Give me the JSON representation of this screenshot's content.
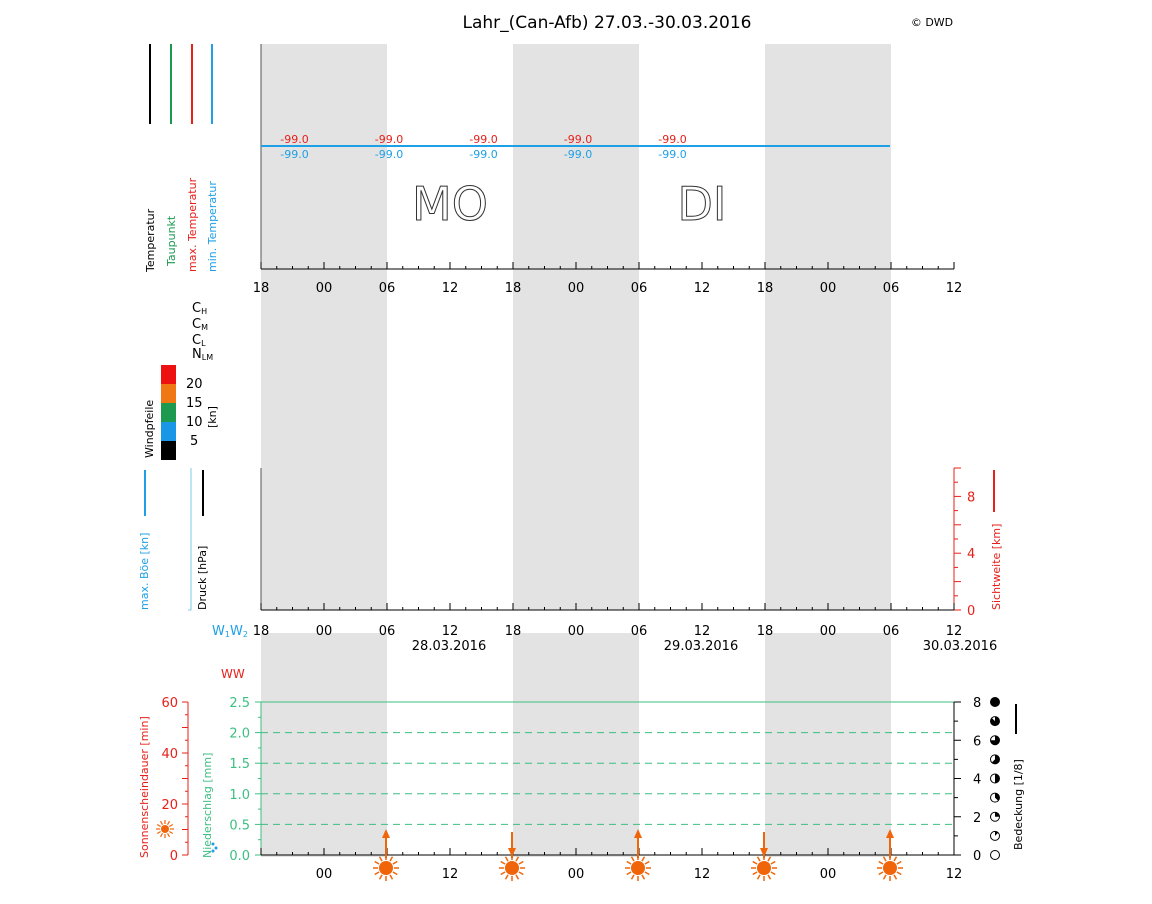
{
  "title": "Lahr_(Can-Afb) 27.03.-30.03.2016",
  "copyright": "© DWD",
  "colors": {
    "temperature": "#000000",
    "dewpoint": "#1a9a50",
    "max_temp": "#e8201a",
    "min_temp": "#1ea0e6",
    "night_band": "#e3e3e3",
    "precip": "#3cbf82",
    "sunshine": "#e8201a",
    "sun_icon": "#f0650a",
    "wind_20": "#ee1111",
    "wind_15": "#f07814",
    "wind_10": "#1e9a50",
    "wind_5": "#1a96e6",
    "wind_0": "#000000"
  },
  "legend": {
    "temperature": "Temperatur",
    "dewpoint": "Taupunkt",
    "max_temp": "max. Temperatur",
    "min_temp": "min. Temperatur",
    "cloud_ch": "CH",
    "cloud_cm": "CM",
    "cloud_cl": "CL",
    "cloud_nlm": "NLM",
    "wind_title": "Windpfeile",
    "wind_unit": "[kn]",
    "wind_levels": [
      "20",
      "15",
      "10",
      "5"
    ],
    "gust": "max. Böe [kn]",
    "pressure": "Druck [hPa]",
    "visibility": "Sichtweite [km]",
    "weather_codes": "W1W2",
    "ww": "WW",
    "sunshine": "Sonnenscheindauer [min]",
    "precip": "Niederschlag [mm]",
    "cloud_cover": "Bedeckung [1/8]"
  },
  "day_labels": [
    "MO",
    "DI"
  ],
  "dates": [
    "28.03.2016",
    "29.03.2016",
    "30.03.2016"
  ],
  "chart_data": [
    {
      "type": "line",
      "title": "Lahr_(Can-Afb) 27.03.-30.03.2016",
      "x_ticks": [
        "18",
        "00",
        "06",
        "12",
        "18",
        "00",
        "06",
        "12",
        "18",
        "00",
        "06",
        "12"
      ],
      "x_hours": [
        0,
        6,
        12,
        18,
        24,
        30,
        36,
        42,
        48,
        54,
        60,
        66
      ],
      "series": [
        {
          "name": "max. Temperatur",
          "labels_x": [
            3,
            12,
            21,
            30,
            39
          ],
          "values": [
            -99.0,
            -99.0,
            -99.0,
            -99.0,
            -99.0
          ]
        },
        {
          "name": "min. Temperatur",
          "labels_x": [
            3,
            12,
            21,
            30,
            39
          ],
          "values": [
            -99.0,
            -99.0,
            -99.0,
            -99.0,
            -99.0
          ]
        }
      ],
      "missing_label": "-99.0",
      "night_bands_hours": [
        [
          0,
          12
        ],
        [
          24,
          36
        ],
        [
          48,
          60
        ]
      ]
    },
    {
      "type": "line",
      "y2label": "Sichtweite [km]",
      "y2_ticks": [
        "0",
        "4",
        "8"
      ],
      "y2_values": [
        0,
        4,
        8
      ],
      "y2lim": [
        0,
        10
      ]
    },
    {
      "type": "bar",
      "xlabel": "",
      "x_ticks": [
        "00",
        "12",
        "00",
        "12",
        "00",
        "12"
      ],
      "x_hours": [
        6,
        18,
        30,
        42,
        54,
        66
      ],
      "sunshine_ticks": [
        "0",
        "20",
        "40",
        "60"
      ],
      "sunshine_values": [
        0,
        20,
        40,
        60
      ],
      "precip_ticks": [
        "0.0",
        "0.5",
        "1.0",
        "1.5",
        "2.0",
        "2.5"
      ],
      "precip_values": [
        0.0,
        0.5,
        1.0,
        1.5,
        2.0,
        2.5
      ],
      "cover_ticks": [
        "0",
        "2",
        "4",
        "6",
        "8"
      ],
      "cover_values": [
        0,
        2,
        4,
        6,
        8
      ],
      "sun_events": [
        {
          "hour": 12,
          "dir": "up"
        },
        {
          "hour": 24,
          "dir": "down"
        },
        {
          "hour": 36,
          "dir": "up"
        },
        {
          "hour": 48,
          "dir": "down"
        },
        {
          "hour": 60,
          "dir": "up"
        }
      ]
    }
  ]
}
